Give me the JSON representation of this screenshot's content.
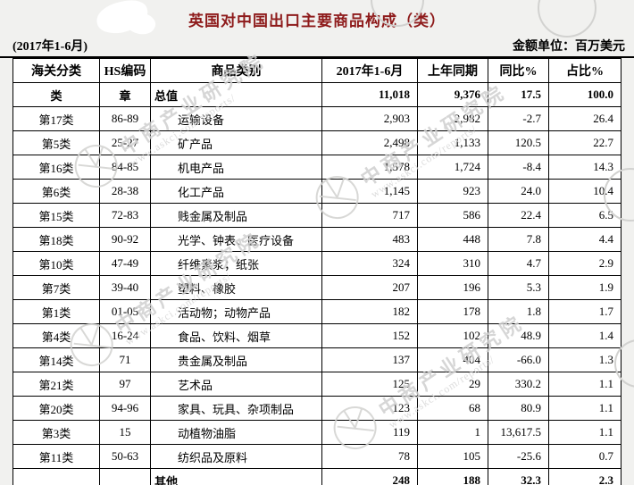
{
  "title": "英国对中国出口主要商品构成（类）",
  "period_note": "(2017年1-6月)",
  "unit_note": "金额单位：百万美元",
  "watermark": {
    "name": "中商产业研究院",
    "url": "www.askci.com/reports/"
  },
  "colors": {
    "title_red": "#8e1b1b",
    "border": "#000000",
    "page_background": "#f1f1ef",
    "watermark_gray": "#d0d0d0"
  },
  "table": {
    "headers": [
      "海关分类",
      "HS编码",
      "商品类别",
      "2017年1-6月",
      "上年同期",
      "同比%",
      "占比%"
    ],
    "rows": [
      {
        "class": "类",
        "chapter": "章",
        "category": "总值",
        "current": "11,018",
        "previous": "9,376",
        "yoy": "17.5",
        "share": "100.0",
        "bold": true
      },
      {
        "class": "第17类",
        "chapter": "86-89",
        "category": "运输设备",
        "current": "2,903",
        "previous": "2,982",
        "yoy": "-2.7",
        "share": "26.4",
        "bold": false
      },
      {
        "class": "第5类",
        "chapter": "25-27",
        "category": "矿产品",
        "current": "2,498",
        "previous": "1,133",
        "yoy": "120.5",
        "share": "22.7",
        "bold": false
      },
      {
        "class": "第16类",
        "chapter": "84-85",
        "category": "机电产品",
        "current": "1,578",
        "previous": "1,724",
        "yoy": "-8.4",
        "share": "14.3",
        "bold": false
      },
      {
        "class": "第6类",
        "chapter": "28-38",
        "category": "化工产品",
        "current": "1,145",
        "previous": "923",
        "yoy": "24.0",
        "share": "10.4",
        "bold": false
      },
      {
        "class": "第15类",
        "chapter": "72-83",
        "category": "贱金属及制品",
        "current": "717",
        "previous": "586",
        "yoy": "22.4",
        "share": "6.5",
        "bold": false
      },
      {
        "class": "第18类",
        "chapter": "90-92",
        "category": "光学、钟表、医疗设备",
        "current": "483",
        "previous": "448",
        "yoy": "7.8",
        "share": "4.4",
        "bold": false
      },
      {
        "class": "第10类",
        "chapter": "47-49",
        "category": "纤维素浆；纸张",
        "current": "324",
        "previous": "310",
        "yoy": "4.7",
        "share": "2.9",
        "bold": false
      },
      {
        "class": "第7类",
        "chapter": "39-40",
        "category": "塑料、橡胶",
        "current": "207",
        "previous": "196",
        "yoy": "5.3",
        "share": "1.9",
        "bold": false
      },
      {
        "class": "第1类",
        "chapter": "01-05",
        "category": "活动物；动物产品",
        "current": "182",
        "previous": "178",
        "yoy": "1.8",
        "share": "1.7",
        "bold": false
      },
      {
        "class": "第4类",
        "chapter": "16-24",
        "category": "食品、饮料、烟草",
        "current": "152",
        "previous": "102",
        "yoy": "48.9",
        "share": "1.4",
        "bold": false
      },
      {
        "class": "第14类",
        "chapter": "71",
        "category": "贵金属及制品",
        "current": "137",
        "previous": "404",
        "yoy": "-66.0",
        "share": "1.3",
        "bold": false
      },
      {
        "class": "第21类",
        "chapter": "97",
        "category": "艺术品",
        "current": "125",
        "previous": "29",
        "yoy": "330.2",
        "share": "1.1",
        "bold": false
      },
      {
        "class": "第20类",
        "chapter": "94-96",
        "category": "家具、玩具、杂项制品",
        "current": "123",
        "previous": "68",
        "yoy": "80.9",
        "share": "1.1",
        "bold": false
      },
      {
        "class": "第3类",
        "chapter": "15",
        "category": "动植物油脂",
        "current": "119",
        "previous": "1",
        "yoy": "13,617.5",
        "share": "1.1",
        "bold": false
      },
      {
        "class": "第11类",
        "chapter": "50-63",
        "category": "纺织品及原料",
        "current": "78",
        "previous": "105",
        "yoy": "-25.6",
        "share": "0.7",
        "bold": false
      },
      {
        "class": "",
        "chapter": "",
        "category": "其他",
        "current": "248",
        "previous": "188",
        "yoy": "32.3",
        "share": "2.3",
        "bold": true
      }
    ]
  }
}
